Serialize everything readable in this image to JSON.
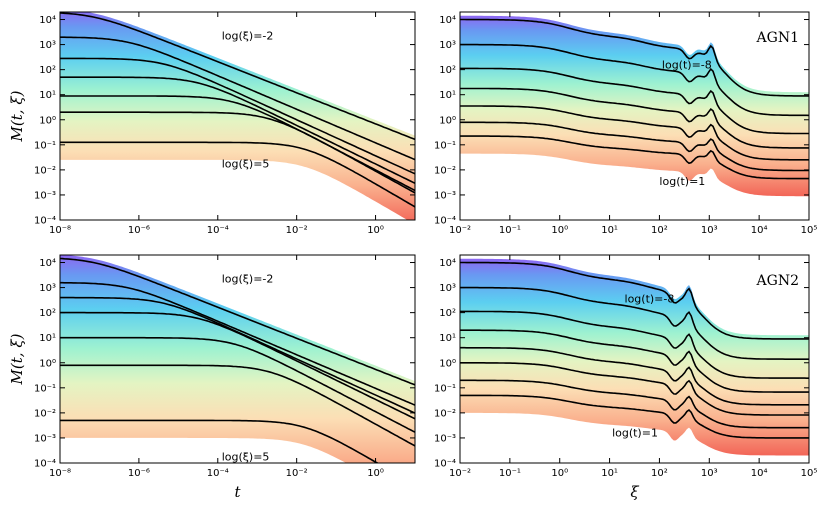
{
  "chart_data": [
    {
      "id": "p0",
      "type": "line",
      "panel_name": "",
      "x_scale": "log",
      "y_scale": "log",
      "xlim_exp": [
        -8,
        1
      ],
      "ylim_exp": [
        -4,
        4.3
      ],
      "x_ticks": [
        -8,
        -6,
        -4,
        -2,
        0
      ],
      "y_ticks": [
        -4,
        -3,
        -2,
        -1,
        0,
        1,
        2,
        3,
        4
      ],
      "xlabel": "",
      "ylabel": "M(t, ξ)",
      "annotations": [
        {
          "text": "log(ξ)=-2",
          "x": -3.9,
          "y": 3.2
        },
        {
          "text": "log(ξ)=5",
          "x": -3.9,
          "y": -1.9
        }
      ],
      "curve_family": "time",
      "series_count": 7,
      "series_color_top": "#7a5cf0",
      "series_color_bottom": "#f04a3a"
    },
    {
      "id": "p1",
      "type": "line",
      "panel_name": "AGN1",
      "x_scale": "log",
      "y_scale": "log",
      "xlim_exp": [
        -2,
        5
      ],
      "ylim_exp": [
        -4,
        4.3
      ],
      "x_ticks": [
        -2,
        -1,
        0,
        1,
        2,
        3,
        4,
        5
      ],
      "y_ticks": [
        -4,
        -3,
        -2,
        -1,
        0,
        1,
        2,
        3,
        4
      ],
      "xlabel": "",
      "ylabel": "",
      "annotations": [
        {
          "text": "log(t)=-8",
          "x": 2.05,
          "y": 2.05
        },
        {
          "text": "log(t)=1",
          "x": 2.0,
          "y": -2.6
        }
      ],
      "curve_family": "xi",
      "peak_exp": 3.05,
      "dip_exp": 2.6,
      "levels": [
        4.0,
        3.0,
        2.05,
        1.25,
        0.55,
        -0.1,
        -0.65
      ],
      "series_color_top": "#7a5cf0",
      "series_color_bottom": "#f04a3a"
    },
    {
      "id": "p2",
      "type": "line",
      "panel_name": "",
      "x_scale": "log",
      "y_scale": "log",
      "xlim_exp": [
        -8,
        1
      ],
      "ylim_exp": [
        -4,
        4.3
      ],
      "x_ticks": [
        -8,
        -6,
        -4,
        -2,
        0
      ],
      "y_ticks": [
        -4,
        -3,
        -2,
        -1,
        0,
        1,
        2,
        3,
        4
      ],
      "xlabel": "t",
      "ylabel": "M(t, ξ)",
      "annotations": [
        {
          "text": "log(ξ)=-2",
          "x": -3.9,
          "y": 3.2
        },
        {
          "text": "log(ξ)=5",
          "x": -3.9,
          "y": -3.9
        }
      ],
      "curve_family": "time",
      "series_count": 7,
      "series_color_top": "#7a5cf0",
      "series_color_bottom": "#f04a3a"
    },
    {
      "id": "p3",
      "type": "line",
      "panel_name": "AGN2",
      "x_scale": "log",
      "y_scale": "log",
      "xlim_exp": [
        -2,
        5
      ],
      "ylim_exp": [
        -4,
        4.3
      ],
      "x_ticks": [
        -2,
        -1,
        0,
        1,
        2,
        3,
        4,
        5
      ],
      "y_ticks": [
        -4,
        -3,
        -2,
        -1,
        0,
        1,
        2,
        3,
        4
      ],
      "xlabel": "ξ",
      "ylabel": "",
      "annotations": [
        {
          "text": "log(t)=-8",
          "x": 1.3,
          "y": 2.4
        },
        {
          "text": "log(t)=1",
          "x": 1.05,
          "y": -2.95
        }
      ],
      "curve_family": "xi",
      "peak_exp": 2.6,
      "dip_exp": 2.3,
      "levels": [
        4.0,
        3.0,
        2.05,
        1.3,
        0.6,
        0.0,
        -0.7,
        -1.3
      ],
      "series_color_top": "#7a5cf0",
      "series_color_bottom": "#f04a3a"
    }
  ]
}
